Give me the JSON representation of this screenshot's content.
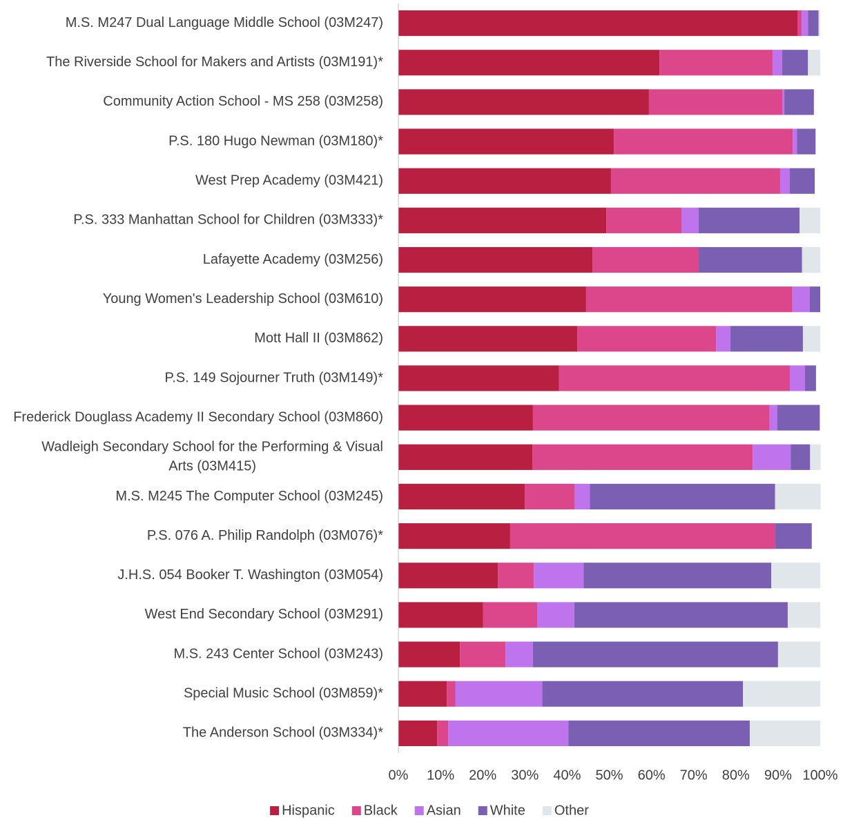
{
  "chart_data": {
    "type": "stacked-bar-horizontal",
    "categories": [
      "M.S. M247 Dual Language Middle School (03M247)",
      "The Riverside School for Makers and Artists (03M191)*",
      "Community Action School - MS 258 (03M258)",
      "P.S. 180 Hugo Newman (03M180)*",
      "West Prep Academy (03M421)",
      "P.S. 333 Manhattan School for Children (03M333)*",
      "Lafayette Academy (03M256)",
      "Young Women's Leadership School (03M610)",
      "Mott Hall II (03M862)",
      "P.S. 149 Sojourner Truth (03M149)*",
      "Frederick Douglass Academy II Secondary School (03M860)",
      "Wadleigh Secondary School for the Performing & Visual Arts (03M415)",
      "M.S. M245 The Computer School (03M245)",
      "P.S. 076 A. Philip Randolph (03M076)*",
      "J.H.S. 054 Booker T. Washington (03M054)",
      "West End Secondary School (03M291)",
      "M.S. 243 Center School (03M243)",
      "Special Music School (03M859)*",
      "The Anderson School (03M334)*"
    ],
    "series": [
      {
        "name": "Hispanic",
        "color": "#b81f40",
        "values": [
          94.6,
          61.9,
          59.4,
          51.1,
          50.4,
          49.3,
          46.0,
          44.5,
          42.4,
          38.1,
          31.9,
          31.8,
          30.0,
          26.5,
          23.6,
          20.1,
          14.6,
          11.5,
          9.2
        ]
      },
      {
        "name": "Black",
        "color": "#dc468a",
        "values": [
          1.0,
          26.8,
          31.6,
          42.4,
          40.1,
          17.8,
          25.2,
          48.9,
          32.9,
          54.7,
          56.1,
          52.2,
          11.8,
          62.8,
          8.5,
          12.8,
          10.8,
          2.0,
          2.6
        ]
      },
      {
        "name": "Asian",
        "color": "#bf73ec",
        "values": [
          1.5,
          2.3,
          0.5,
          1.0,
          2.3,
          4.1,
          0,
          4.1,
          3.4,
          3.6,
          1.8,
          9.0,
          3.6,
          0,
          11.8,
          8.8,
          6.5,
          20.6,
          28.5
        ]
      },
      {
        "name": "White",
        "color": "#7b5fb3",
        "values": [
          2.5,
          6.1,
          7.0,
          4.4,
          5.9,
          23.9,
          24.5,
          2.5,
          17.2,
          2.6,
          10.1,
          4.6,
          43.9,
          8.7,
          44.5,
          50.6,
          58.1,
          47.6,
          43.0
        ]
      },
      {
        "name": "Other",
        "color": "#e1e6ea",
        "values": [
          0.4,
          2.9,
          0,
          0,
          0,
          4.9,
          4.3,
          0,
          4.1,
          0,
          0,
          2.5,
          10.8,
          0,
          11.6,
          7.7,
          10.0,
          18.3,
          16.7
        ]
      }
    ],
    "xlim": [
      0,
      100
    ],
    "xticks": [
      {
        "value": 0,
        "label": "0%"
      },
      {
        "value": 10,
        "label": "10%"
      },
      {
        "value": 20,
        "label": "20%"
      },
      {
        "value": 30,
        "label": "30%"
      },
      {
        "value": 40,
        "label": "40%"
      },
      {
        "value": 50,
        "label": "50%"
      },
      {
        "value": 60,
        "label": "60%"
      },
      {
        "value": 70,
        "label": "70%"
      },
      {
        "value": 80,
        "label": "80%"
      },
      {
        "value": 90,
        "label": "90%"
      },
      {
        "value": 100,
        "label": "100%"
      }
    ],
    "legend": "bottom"
  }
}
